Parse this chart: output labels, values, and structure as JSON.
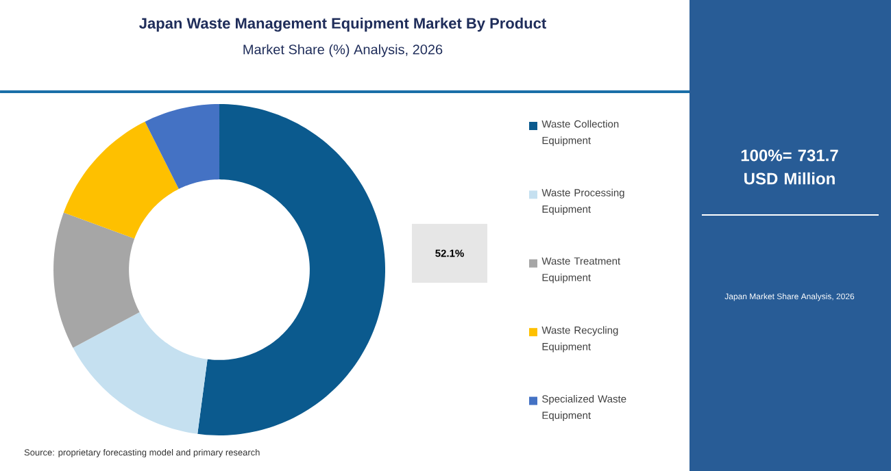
{
  "chart_data": {
    "type": "donut",
    "title": "Japan Waste Management Equipment Market By Product",
    "subtitle": "Market Share (%) Analysis, 2026",
    "categories": [
      "Waste Collection Equipment",
      "Waste Processing Equipment",
      "Waste Treatment Equipment",
      "Waste Recycling Equipment",
      "Specialized Waste Equipment"
    ],
    "values": [
      52.1,
      15.1,
      13.4,
      12.0,
      7.4
    ],
    "colors": [
      "#0b5a8e",
      "#c5e0f0",
      "#a6a6a6",
      "#fec000",
      "#4472c4"
    ],
    "value_labels": [
      "52.1%",
      null,
      null,
      null,
      null
    ],
    "legend": "right",
    "annotations": [
      "100%= 731.7 USD Million",
      "Japan Market Share Analysis, 2026",
      "Source: proprietary forecasting model and primary research"
    ]
  }
}
